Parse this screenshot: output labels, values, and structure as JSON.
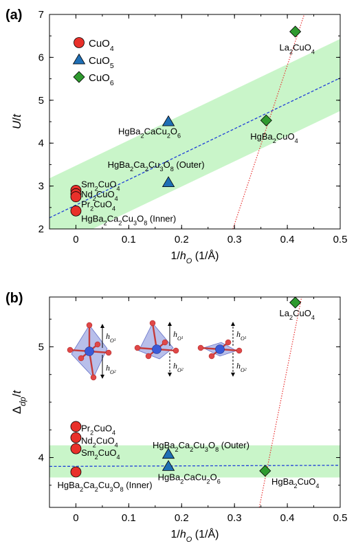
{
  "chart_data": [
    {
      "panel": "(a)",
      "type": "scatter",
      "xlabel": "1/h_O (1/Å)",
      "ylabel": "U/t",
      "xlim": [
        -0.05,
        0.5
      ],
      "ylim": [
        2,
        7
      ],
      "xticks": [
        "0",
        "0.1",
        "0.2",
        "0.3",
        "0.4",
        "0.5"
      ],
      "yticks": [
        "2",
        "3",
        "4",
        "5",
        "6",
        "7"
      ],
      "legend": {
        "placement": "top-left",
        "entries": [
          {
            "marker": "circle",
            "color": "#e8302a",
            "label": "CuO",
            "sub": "4"
          },
          {
            "marker": "triangle",
            "color": "#1f6fb5",
            "label": "CuO",
            "sub": "5"
          },
          {
            "marker": "diamond",
            "color": "#2f9a2f",
            "label": "CuO",
            "sub": "6"
          }
        ]
      },
      "series": [
        {
          "marker": "circle",
          "color": "#e8302a",
          "points": [
            {
              "x": 0.0,
              "y": 2.9,
              "label": [
                "Sm",
                "2",
                "CuO",
                "4"
              ],
              "lx": 0.01,
              "ly": 3.03
            },
            {
              "x": 0.0,
              "y": 2.82,
              "label": [
                "Nd",
                "2",
                "CuO",
                "4"
              ],
              "lx": 0.01,
              "ly": 2.8
            },
            {
              "x": 0.0,
              "y": 2.75,
              "label": [
                "Pr",
                "2",
                "CuO",
                "4"
              ],
              "lx": 0.01,
              "ly": 2.57
            },
            {
              "x": 0.0,
              "y": 2.42,
              "label": [
                "HgBa",
                "2",
                "Ca",
                "2",
                "Cu",
                "3",
                "O",
                "8",
                " (Inner)"
              ],
              "lx": 0.01,
              "ly": 2.23
            }
          ]
        },
        {
          "marker": "triangle",
          "color": "#1f6fb5",
          "points": [
            {
              "x": 0.175,
              "y": 4.5,
              "label": [
                "HgBa",
                "2",
                "CaCu",
                "2",
                "O",
                "6"
              ],
              "lx": 0.08,
              "ly": 4.27
            },
            {
              "x": 0.175,
              "y": 3.08,
              "label": [
                "HgBa",
                "2",
                "Ca",
                "2",
                "Cu",
                "3",
                "O",
                "8",
                " (Outer)"
              ],
              "lx": 0.06,
              "ly": 3.49
            }
          ]
        },
        {
          "marker": "diamond",
          "color": "#2f9a2f",
          "points": [
            {
              "x": 0.36,
              "y": 4.53,
              "label": [
                "HgBa",
                "2",
                "CuO",
                "4"
              ],
              "lx": 0.33,
              "ly": 4.15
            },
            {
              "x": 0.415,
              "y": 6.6,
              "label": [
                "La",
                "2",
                "CuO",
                "4"
              ],
              "lx": 0.385,
              "ly": 6.22
            }
          ]
        }
      ],
      "fit_line": {
        "color": "#1f3fd8",
        "style": "dashed",
        "x": [
          -0.05,
          0.5
        ],
        "y": [
          2.26,
          5.52
        ]
      },
      "band": {
        "color": "#c9f5c9",
        "x": [
          -0.05,
          0.5
        ],
        "upper": [
          3.18,
          6.43
        ],
        "lower": [
          1.52,
          4.75
        ]
      },
      "cross_line": {
        "color": "#e83030",
        "style": "dotted",
        "x": [
          0.297,
          0.432
        ],
        "y": [
          2,
          7
        ]
      }
    },
    {
      "panel": "(b)",
      "type": "scatter",
      "xlabel": "1/h_O (1/Å)",
      "ylabel": "Δ_dp/t",
      "xlim": [
        -0.05,
        0.5
      ],
      "ylim": [
        3.55,
        5.45
      ],
      "xticks": [
        "0",
        "0.1",
        "0.2",
        "0.3",
        "0.4",
        "0.5"
      ],
      "yticks": [
        "4",
        "5"
      ],
      "inset": {
        "labels": [
          "h_O1",
          "h_O2",
          "h_O1",
          "h_O2",
          "h_O1",
          "h_O2"
        ]
      },
      "series": [
        {
          "marker": "circle",
          "color": "#e8302a",
          "points": [
            {
              "x": 0.0,
              "y": 4.28,
              "label": [
                "Pr",
                "2",
                "CuO",
                "4"
              ],
              "lx": 0.01,
              "ly": 4.26
            },
            {
              "x": 0.0,
              "y": 4.18,
              "label": [
                "Nd",
                "2",
                "CuO",
                "4"
              ],
              "lx": 0.01,
              "ly": 4.15
            },
            {
              "x": 0.0,
              "y": 4.08,
              "label": [
                "Sm",
                "2",
                "CuO",
                "4"
              ],
              "lx": 0.01,
              "ly": 4.04
            },
            {
              "x": 0.0,
              "y": 3.87,
              "label": [
                "HgBa",
                "2",
                "Ca",
                "2",
                "Cu",
                "3",
                "O",
                "8",
                " (Inner)"
              ],
              "lx": -0.035,
              "ly": 3.75
            }
          ]
        },
        {
          "marker": "triangle",
          "color": "#1f6fb5",
          "points": [
            {
              "x": 0.175,
              "y": 4.03,
              "label": [
                "HgBa",
                "2",
                "Ca",
                "2",
                "Cu",
                "3",
                "O",
                "8",
                " (Outer)"
              ],
              "lx": 0.145,
              "ly": 4.11
            },
            {
              "x": 0.175,
              "y": 3.92,
              "label": [
                "HgBa",
                "2",
                "CaCu",
                "2",
                "O",
                "6"
              ],
              "lx": 0.155,
              "ly": 3.82
            }
          ]
        },
        {
          "marker": "diamond",
          "color": "#2f9a2f",
          "points": [
            {
              "x": 0.358,
              "y": 3.88,
              "label": [
                "HgBa",
                "2",
                "CuO",
                "4"
              ],
              "lx": 0.37,
              "ly": 3.78
            },
            {
              "x": 0.415,
              "y": 5.4,
              "label": [
                "La",
                "2",
                "CuO",
                "4"
              ],
              "lx": 0.385,
              "ly": 5.3
            }
          ]
        }
      ],
      "fit_line": {
        "color": "#1f3fd8",
        "style": "dashed",
        "x": [
          -0.05,
          0.5
        ],
        "y": [
          3.92,
          3.93
        ]
      },
      "band": {
        "color": "#c9f5c9",
        "x": [
          -0.05,
          0.5
        ],
        "upper": [
          4.11,
          4.11
        ],
        "lower": [
          3.82,
          3.82
        ]
      },
      "cross_line": {
        "color": "#e83030",
        "style": "dotted",
        "x": [
          0.347,
          0.427
        ],
        "y": [
          3.55,
          5.45
        ]
      }
    }
  ]
}
